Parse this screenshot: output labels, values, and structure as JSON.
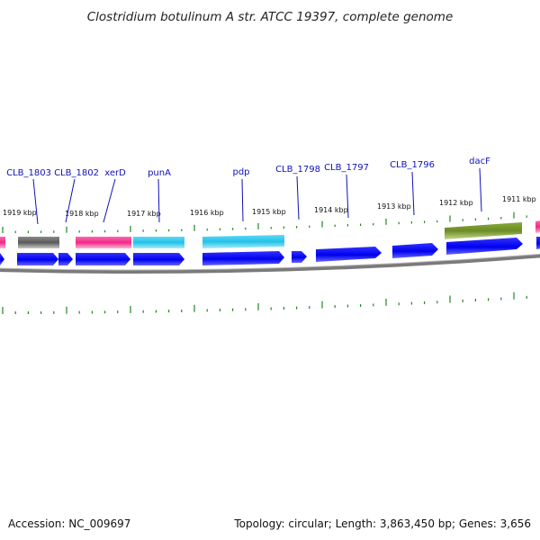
{
  "title": "Clostridium botulinum A str. ATCC 19397, complete genome",
  "accession": "Accession: NC_009697",
  "summary": "Topology: circular; Length: 3,863,450 bp; Genes: 3,656",
  "colors": {
    "forward_cds": "#0000ee",
    "gray_feature": "#6b6b6b",
    "pink_feature": "#ee2a88",
    "cyan_feature": "#22c2e8",
    "olive_feature": "#6b8c23",
    "tick": "#1b8a1b",
    "backbone": "#7a7a7a",
    "label": "#1111bb"
  },
  "ruler": [
    {
      "label": "1919 kbp"
    },
    {
      "label": "1918 kbp"
    },
    {
      "label": "1917 kbp"
    },
    {
      "label": "1916 kbp"
    },
    {
      "label": "1915 kbp"
    },
    {
      "label": "1914 kbp"
    },
    {
      "label": "1913 kbp"
    },
    {
      "label": "1912 kbp"
    },
    {
      "label": "1911 kbp"
    }
  ],
  "gene_labels": [
    {
      "name": "CLB_1803"
    },
    {
      "name": "CLB_1802"
    },
    {
      "name": "xerD"
    },
    {
      "name": "punA"
    },
    {
      "name": "pdp"
    },
    {
      "name": "CLB_1798"
    },
    {
      "name": "CLB_1797"
    },
    {
      "name": "CLB_1796"
    },
    {
      "name": "dacF"
    }
  ]
}
